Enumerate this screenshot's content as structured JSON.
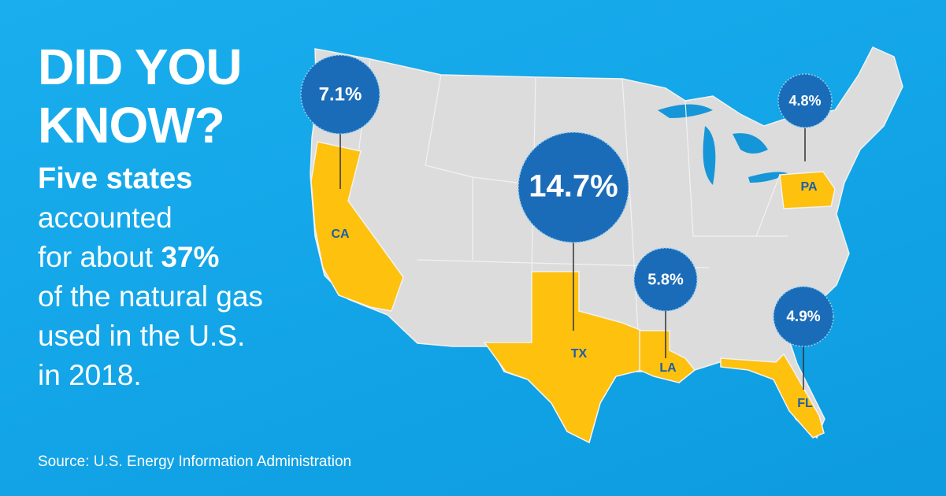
{
  "headline": [
    "DID YOU",
    "KNOW?"
  ],
  "body": [
    [
      {
        "text": "Five states",
        "bold": true
      }
    ],
    [
      {
        "text": "accounted",
        "bold": false
      }
    ],
    [
      {
        "text": "for about ",
        "bold": false
      },
      {
        "text": "37%",
        "bold": true
      }
    ],
    [
      {
        "text": "of the natural gas",
        "bold": false
      }
    ],
    [
      {
        "text": "used in the U.S.",
        "bold": false
      }
    ],
    [
      {
        "text": "in 2018.",
        "bold": false
      }
    ]
  ],
  "states": [
    {
      "abbr": "CA",
      "share": "7.1%"
    },
    {
      "abbr": "TX",
      "share": "14.7%"
    },
    {
      "abbr": "LA",
      "share": "5.8%"
    },
    {
      "abbr": "FL",
      "share": "4.9%"
    },
    {
      "abbr": "PA",
      "share": "4.8%"
    }
  ],
  "source": "Source: U.S. Energy Information Administration"
}
